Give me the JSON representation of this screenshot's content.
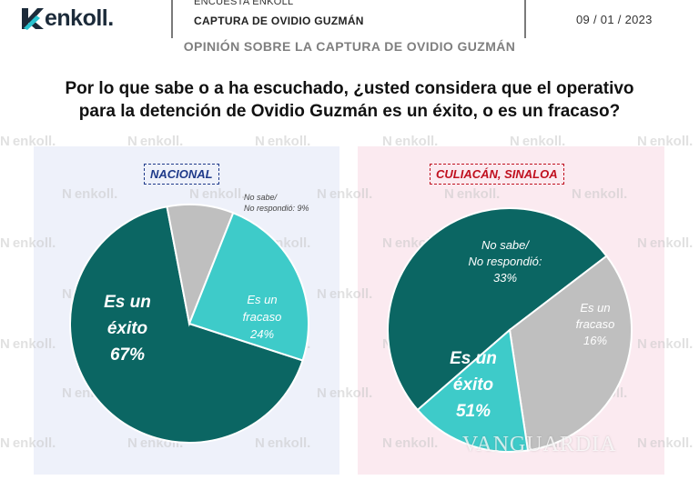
{
  "header": {
    "logo_text": "enkoll.",
    "survey_label": "ENCUESTA ENKOLL",
    "report_title": "CAPTURA DE OVIDIO GUZMÁN",
    "date": "09 / 01 / 2023"
  },
  "section_title": "OPINIÓN SOBRE LA CAPTURA DE OVIDIO GUZMÁN",
  "question_line1": "Por lo que sabe o a ha escuchado, ¿usted considera que el operativo",
  "question_line2": "para la detención de Ovidio Guzmán es un éxito, o es un fracaso?",
  "watermark": "VANGUARDIA",
  "colors": {
    "exito": "#0b6663",
    "fracaso": "#3ecbc9",
    "no_sabe": "#bfbfbf",
    "panel_nacional": "#eef1fa",
    "panel_culiacan": "#fbeaf0",
    "chip_nacional": "#1f3a8a",
    "chip_culiacan": "#c0101f"
  },
  "chart_data": [
    {
      "type": "pie",
      "title": "NACIONAL",
      "categories": [
        "Es un éxito",
        "No sabe/ No respondió",
        "Es un fracaso"
      ],
      "values": [
        67,
        9,
        24
      ],
      "labels": {
        "exito": [
          "Es un",
          "éxito",
          "67%"
        ],
        "no_sabe": [
          "No sabe/",
          "No respondió: 9%"
        ],
        "fracaso": [
          "Es un",
          "fracaso",
          "24%"
        ]
      }
    },
    {
      "type": "pie",
      "title": "CULIACÁN, SINALOA",
      "categories": [
        "Es un éxito",
        "No sabe/ No respondió",
        "Es un fracaso"
      ],
      "values": [
        51,
        33,
        16
      ],
      "labels": {
        "exito": [
          "Es un",
          "éxito",
          "51%"
        ],
        "no_sabe": [
          "No sabe/",
          "No respondió:",
          "33%"
        ],
        "fracaso": [
          "Es un",
          "fracaso",
          "16%"
        ]
      }
    }
  ]
}
